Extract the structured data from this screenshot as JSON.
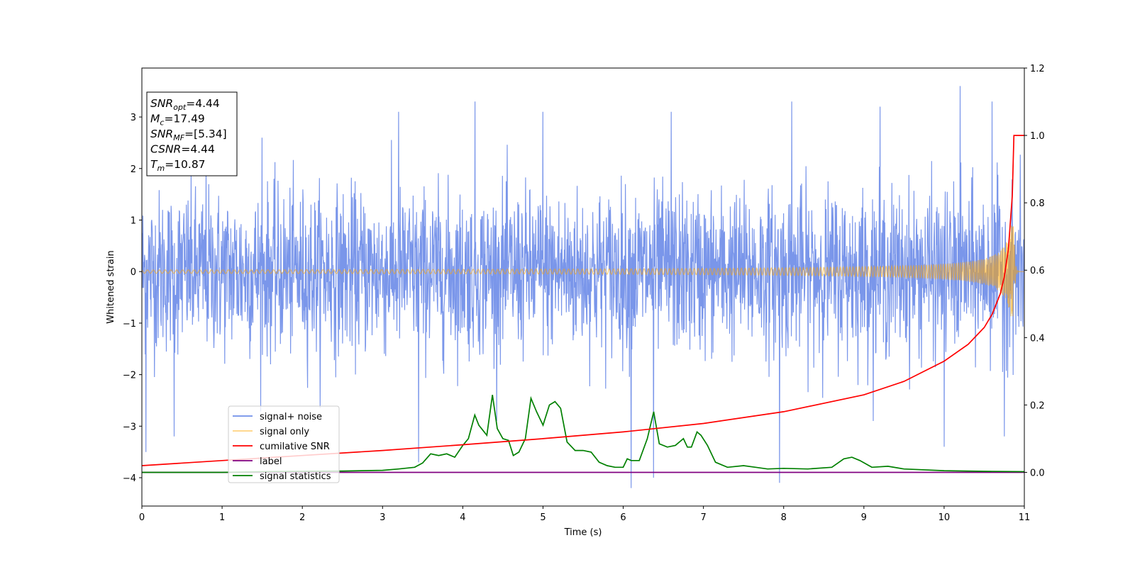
{
  "chart_data": {
    "type": "line",
    "xlabel": "Time (s)",
    "ylabel": "Whitened strain",
    "xlim": [
      0,
      11
    ],
    "ylim": [
      -4.55,
      3.95
    ],
    "y2lim": [
      -0.1,
      1.2
    ],
    "x_ticks": [
      "0",
      "1",
      "2",
      "3",
      "4",
      "5",
      "6",
      "7",
      "8",
      "9",
      "10",
      "11"
    ],
    "y_ticks": [
      "−4",
      "−3",
      "−2",
      "−1",
      "0",
      "1",
      "2",
      "3"
    ],
    "y2_ticks": [
      "0.0",
      "0.2",
      "0.4",
      "0.6",
      "0.8",
      "1.0",
      "1.2"
    ],
    "grid": false,
    "legend_position": "lower-left",
    "info_box": {
      "lines": [
        {
          "sym": "SNR",
          "sub": "opt",
          "value": "=4.44"
        },
        {
          "sym": "M",
          "sub": "c",
          "value": "=17.49"
        },
        {
          "sym": "SNR",
          "sub": "MF",
          "value": "=[5.34]"
        },
        {
          "sym": "CSNR",
          "sub": "",
          "value": "=4.44"
        },
        {
          "sym": "T",
          "sub": "m",
          "value": "=10.87"
        }
      ]
    },
    "series": [
      {
        "name": "signal+ noise",
        "color": "#4169E1",
        "axis": "left",
        "description_values": "white-noise-like strain, approx ±2.5, spikes to 3.6 and -4.2",
        "peaks": [
          [
            0.05,
            2.9
          ],
          [
            0.8,
            2.3
          ],
          [
            1.5,
            2.6
          ],
          [
            3.2,
            3.1
          ],
          [
            4.15,
            3.3
          ],
          [
            5.0,
            3.1
          ],
          [
            6.6,
            3.1
          ],
          [
            8.1,
            3.3
          ],
          [
            9.2,
            3.2
          ],
          [
            10.2,
            3.6
          ],
          [
            10.6,
            3.3
          ]
        ],
        "troughs": [
          [
            0.05,
            -3.5
          ],
          [
            0.4,
            -3.2
          ],
          [
            3.45,
            -3.7
          ],
          [
            6.1,
            -4.2
          ],
          [
            6.38,
            -4.0
          ],
          [
            7.95,
            -4.1
          ],
          [
            10.0,
            -3.4
          ],
          [
            10.75,
            -3.2
          ]
        ]
      },
      {
        "name": "signal only",
        "color": "#FFA500",
        "axis": "left",
        "chirp_merger_time": 10.87,
        "chirp_peak_amplitude": 0.9
      },
      {
        "name": "cumilative SNR",
        "color": "#FF0000",
        "axis": "right",
        "x": [
          0,
          1,
          2,
          3,
          4,
          5,
          6,
          7,
          8,
          9,
          9.5,
          10,
          10.3,
          10.5,
          10.6,
          10.7,
          10.75,
          10.8,
          10.85,
          10.87,
          11
        ],
        "y": [
          0.02,
          0.035,
          0.05,
          0.065,
          0.082,
          0.1,
          0.12,
          0.145,
          0.18,
          0.23,
          0.27,
          0.33,
          0.38,
          0.43,
          0.47,
          0.53,
          0.58,
          0.66,
          0.82,
          1.0,
          1.0
        ]
      },
      {
        "name": "label",
        "color": "#800080",
        "axis": "right",
        "x": [
          0,
          11
        ],
        "y": [
          0.0,
          0.0
        ]
      },
      {
        "name": "signal statistics",
        "color": "#008000",
        "axis": "right",
        "x": [
          0,
          0.5,
          1,
          1.5,
          2,
          2.5,
          3,
          3.2,
          3.4,
          3.5,
          3.6,
          3.7,
          3.8,
          3.9,
          4.0,
          4.07,
          4.15,
          4.2,
          4.3,
          4.37,
          4.43,
          4.5,
          4.57,
          4.63,
          4.7,
          4.78,
          4.85,
          4.92,
          5.0,
          5.08,
          5.15,
          5.22,
          5.3,
          5.4,
          5.5,
          5.6,
          5.7,
          5.8,
          5.9,
          6.0,
          6.05,
          6.1,
          6.2,
          6.3,
          6.38,
          6.45,
          6.55,
          6.65,
          6.75,
          6.8,
          6.85,
          6.92,
          6.97,
          7.05,
          7.15,
          7.3,
          7.5,
          7.65,
          7.8,
          8.0,
          8.3,
          8.6,
          8.75,
          8.85,
          8.95,
          9.1,
          9.3,
          9.5,
          10,
          10.5,
          11
        ],
        "y": [
          0.0,
          0.0,
          0.0,
          0.002,
          0.003,
          0.004,
          0.006,
          0.01,
          0.015,
          0.028,
          0.055,
          0.05,
          0.055,
          0.045,
          0.08,
          0.1,
          0.17,
          0.14,
          0.11,
          0.23,
          0.13,
          0.1,
          0.095,
          0.05,
          0.06,
          0.1,
          0.22,
          0.18,
          0.14,
          0.2,
          0.21,
          0.19,
          0.09,
          0.065,
          0.065,
          0.06,
          0.03,
          0.02,
          0.015,
          0.015,
          0.04,
          0.035,
          0.035,
          0.1,
          0.18,
          0.085,
          0.075,
          0.08,
          0.1,
          0.075,
          0.075,
          0.12,
          0.11,
          0.08,
          0.03,
          0.015,
          0.02,
          0.015,
          0.01,
          0.012,
          0.01,
          0.015,
          0.04,
          0.045,
          0.035,
          0.015,
          0.018,
          0.01,
          0.005,
          0.003,
          0.002
        ]
      }
    ]
  }
}
